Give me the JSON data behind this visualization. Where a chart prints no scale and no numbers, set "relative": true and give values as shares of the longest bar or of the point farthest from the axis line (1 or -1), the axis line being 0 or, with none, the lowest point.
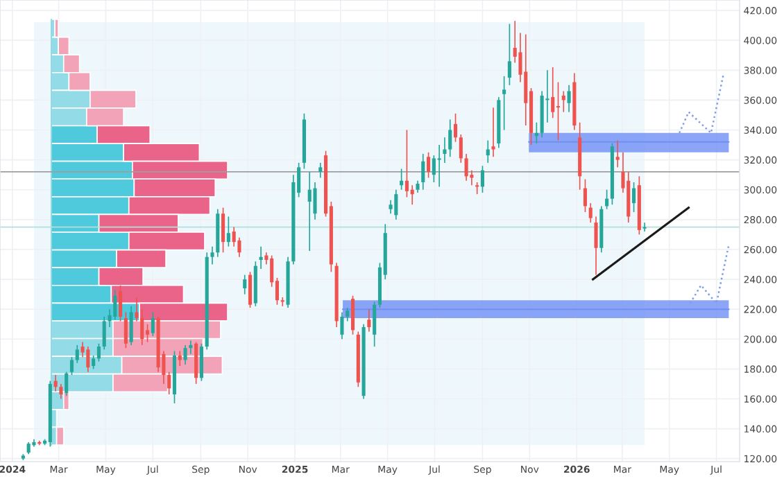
{
  "chart_data": [
    {
      "type": "candlestick",
      "x": [
        "2024-01-15",
        "2024-01-22",
        "2024-01-29",
        "2024-02-05",
        "2024-02-12",
        "2024-02-19",
        "2024-02-26",
        "2024-03-04",
        "2024-03-11",
        "2024-03-18",
        "2024-03-25",
        "2024-04-01",
        "2024-04-08",
        "2024-04-15",
        "2024-04-22",
        "2024-04-29",
        "2024-05-06",
        "2024-05-13",
        "2024-05-20",
        "2024-05-27",
        "2024-06-03",
        "2024-06-10",
        "2024-06-17",
        "2024-06-24",
        "2024-07-01",
        "2024-07-08",
        "2024-07-15",
        "2024-07-22",
        "2024-07-29",
        "2024-08-05",
        "2024-08-12",
        "2024-08-19",
        "2024-08-26",
        "2024-09-02",
        "2024-09-09",
        "2024-09-16",
        "2024-09-23",
        "2024-09-30",
        "2024-10-07",
        "2024-10-14",
        "2024-10-21",
        "2024-10-28",
        "2024-11-04",
        "2024-11-11",
        "2024-11-18",
        "2024-11-25",
        "2024-12-02",
        "2024-12-09",
        "2024-12-16",
        "2024-12-23",
        "2024-12-30",
        "2025-01-06",
        "2025-01-13",
        "2025-01-20",
        "2025-01-27",
        "2025-02-03",
        "2025-02-10",
        "2025-02-17",
        "2025-02-24",
        "2025-03-03",
        "2025-03-10",
        "2025-03-17",
        "2025-03-24",
        "2025-03-31",
        "2025-04-07",
        "2025-04-14",
        "2025-04-21",
        "2025-04-28",
        "2025-05-05",
        "2025-05-12",
        "2025-05-19",
        "2025-05-26",
        "2025-06-02",
        "2025-06-09",
        "2025-06-16",
        "2025-06-23",
        "2025-06-30",
        "2025-07-07",
        "2025-07-14",
        "2025-07-21",
        "2025-07-28",
        "2025-08-04",
        "2025-08-11",
        "2025-08-18",
        "2025-08-25",
        "2025-09-01",
        "2025-09-08",
        "2025-09-15",
        "2025-09-22",
        "2025-09-29",
        "2025-10-06",
        "2025-10-13",
        "2025-10-20",
        "2025-10-27",
        "2025-11-03",
        "2025-11-10",
        "2025-11-17",
        "2025-11-24",
        "2025-12-01",
        "2025-12-08",
        "2025-12-15",
        "2025-12-22",
        "2025-12-29",
        "2026-01-05",
        "2026-01-12",
        "2026-01-19",
        "2026-01-26",
        "2026-02-02",
        "2026-02-09",
        "2026-02-16",
        "2026-02-23",
        "2026-03-02",
        "2026-03-09",
        "2026-03-16",
        "2026-03-23",
        "2026-03-30"
      ],
      "ohlc": [
        [
          120,
          123,
          119,
          122
        ],
        [
          124,
          131,
          123,
          130
        ],
        [
          129,
          133,
          128,
          131
        ],
        [
          131,
          132,
          129,
          130
        ],
        [
          130,
          133,
          129,
          132
        ],
        [
          131,
          172,
          128,
          170
        ],
        [
          172,
          176,
          165,
          168
        ],
        [
          168,
          170,
          160,
          163
        ],
        [
          164,
          178,
          162,
          177
        ],
        [
          178,
          188,
          176,
          186
        ],
        [
          186,
          196,
          184,
          193
        ],
        [
          195,
          198,
          188,
          191
        ],
        [
          193,
          195,
          178,
          181
        ],
        [
          182,
          189,
          180,
          187
        ],
        [
          187,
          197,
          185,
          195
        ],
        [
          195,
          215,
          193,
          212
        ],
        [
          212,
          220,
          208,
          216
        ],
        [
          215,
          233,
          213,
          229
        ],
        [
          232,
          236,
          212,
          215
        ],
        [
          214,
          218,
          194,
          197
        ],
        [
          198,
          222,
          196,
          218
        ],
        [
          218,
          228,
          212,
          214
        ],
        [
          214,
          220,
          196,
          200
        ],
        [
          206,
          210,
          198,
          203
        ],
        [
          204,
          218,
          202,
          214
        ],
        [
          214,
          215,
          178,
          181
        ],
        [
          190,
          192,
          170,
          176
        ],
        [
          176,
          178,
          163,
          167
        ],
        [
          163,
          192,
          157,
          189
        ],
        [
          189,
          192,
          182,
          186
        ],
        [
          186,
          196,
          183,
          194
        ],
        [
          194,
          199,
          190,
          196
        ],
        [
          197,
          198,
          170,
          174
        ],
        [
          174,
          197,
          172,
          195
        ],
        [
          195,
          258,
          193,
          255
        ],
        [
          255,
          262,
          250,
          258
        ],
        [
          258,
          287,
          255,
          284
        ],
        [
          284,
          288,
          258,
          265
        ],
        [
          265,
          282,
          262,
          271
        ],
        [
          272,
          275,
          262,
          265
        ],
        [
          266,
          268,
          255,
          258
        ],
        [
          234,
          243,
          230,
          240
        ],
        [
          243,
          245,
          221,
          223
        ],
        [
          224,
          252,
          222,
          249
        ],
        [
          253,
          262,
          247,
          255
        ],
        [
          256,
          258,
          250,
          253
        ],
        [
          254,
          256,
          235,
          238
        ],
        [
          239,
          241,
          223,
          226
        ],
        [
          226,
          228,
          222,
          225
        ],
        [
          223,
          255,
          221,
          252
        ],
        [
          252,
          310,
          250,
          305
        ],
        [
          298,
          318,
          295,
          315
        ],
        [
          318,
          351,
          314,
          347
        ],
        [
          292,
          312,
          259,
          300
        ],
        [
          284,
          305,
          280,
          301
        ],
        [
          312,
          318,
          308,
          315
        ],
        [
          323,
          326,
          282,
          284
        ],
        [
          289,
          292,
          245,
          250
        ],
        [
          249,
          251,
          208,
          212
        ],
        [
          203,
          218,
          200,
          215
        ],
        [
          215,
          221,
          212,
          219
        ],
        [
          227,
          229,
          203,
          206
        ],
        [
          203,
          205,
          168,
          171
        ],
        [
          162,
          210,
          160,
          208
        ],
        [
          213,
          220,
          205,
          208
        ],
        [
          203,
          225,
          195,
          223
        ],
        [
          223,
          251,
          221,
          248
        ],
        [
          243,
          277,
          240,
          271
        ],
        [
          287,
          293,
          284,
          290
        ],
        [
          283,
          300,
          280,
          297
        ],
        [
          303,
          314,
          300,
          306
        ],
        [
          306,
          340,
          295,
          299
        ],
        [
          300,
          303,
          290,
          297
        ],
        [
          300,
          306,
          298,
          304
        ],
        [
          305,
          324,
          300,
          319
        ],
        [
          322,
          325,
          308,
          312
        ],
        [
          310,
          323,
          305,
          321
        ],
        [
          320,
          330,
          302,
          321
        ],
        [
          324,
          335,
          318,
          327
        ],
        [
          327,
          347,
          322,
          340
        ],
        [
          344,
          351,
          332,
          335
        ],
        [
          335,
          337,
          318,
          321
        ],
        [
          321,
          324,
          306,
          309
        ],
        [
          310,
          313,
          303,
          308
        ],
        [
          303,
          305,
          297,
          302
        ],
        [
          302,
          316,
          298,
          313
        ],
        [
          323,
          333,
          318,
          327
        ],
        [
          329,
          355,
          322,
          327
        ],
        [
          331,
          362,
          328,
          360
        ],
        [
          364,
          376,
          340,
          367
        ],
        [
          375,
          411,
          370,
          386
        ],
        [
          395,
          413,
          385,
          389
        ],
        [
          392,
          405,
          372,
          377
        ],
        [
          379,
          404,
          343,
          358
        ],
        [
          366,
          368,
          330,
          338
        ],
        [
          336,
          345,
          331,
          338
        ],
        [
          338,
          366,
          335,
          363
        ],
        [
          360,
          380,
          345,
          361
        ],
        [
          362,
          382,
          348,
          352
        ],
        [
          356,
          372,
          333,
          355
        ],
        [
          363,
          366,
          352,
          360
        ],
        [
          358,
          370,
          352,
          366
        ],
        [
          372,
          378,
          340,
          343
        ],
        [
          335,
          345,
          300,
          309
        ],
        [
          301,
          307,
          285,
          289
        ],
        [
          288,
          291,
          278,
          281
        ],
        [
          278,
          282,
          243,
          261
        ],
        [
          261,
          289,
          258,
          287
        ],
        [
          289,
          300,
          287,
          294
        ],
        [
          294,
          331,
          290,
          329
        ],
        [
          322,
          333,
          315,
          320
        ],
        [
          312,
          325,
          298,
          301
        ],
        [
          306,
          312,
          278,
          282
        ],
        [
          291,
          305,
          285,
          301
        ],
        [
          303,
          309,
          270,
          273
        ],
        [
          274,
          278,
          272,
          275
        ]
      ],
      "colors": [
        "#26a69a",
        "#26a69a",
        "#26a69a",
        "#ef5350",
        "#26a69a",
        "#26a69a",
        "#ef5350",
        "#ef5350",
        "#26a69a",
        "#26a69a",
        "#26a69a",
        "#ef5350",
        "#ef5350",
        "#26a69a",
        "#26a69a",
        "#26a69a",
        "#26a69a",
        "#26a69a",
        "#ef5350",
        "#ef5350",
        "#26a69a",
        "#ef5350",
        "#ef5350",
        "#ef5350",
        "#26a69a",
        "#ef5350",
        "#ef5350",
        "#ef5350",
        "#26a69a",
        "#ef5350",
        "#26a69a",
        "#26a69a",
        "#ef5350",
        "#26a69a",
        "#26a69a",
        "#26a69a",
        "#26a69a",
        "#ef5350",
        "#26a69a",
        "#ef5350",
        "#ef5350",
        "#26a69a",
        "#ef5350",
        "#26a69a",
        "#26a69a",
        "#ef5350",
        "#ef5350",
        "#ef5350",
        "#ef5350",
        "#26a69a",
        "#26a69a",
        "#26a69a",
        "#26a69a",
        "#26a69a",
        "#26a69a",
        "#26a69a",
        "#ef5350",
        "#ef5350",
        "#ef5350",
        "#26a69a",
        "#26a69a",
        "#ef5350",
        "#ef5350",
        "#26a69a",
        "#ef5350",
        "#26a69a",
        "#26a69a",
        "#26a69a",
        "#26a69a",
        "#26a69a",
        "#26a69a",
        "#ef5350",
        "#ef5350",
        "#26a69a",
        "#26a69a",
        "#ef5350",
        "#26a69a",
        "#26a69a",
        "#26a69a",
        "#26a69a",
        "#ef5350",
        "#ef5350",
        "#ef5350",
        "#ef5350",
        "#ef5350",
        "#26a69a",
        "#26a69a",
        "#ef5350",
        "#26a69a",
        "#26a69a",
        "#26a69a",
        "#ef5350",
        "#ef5350",
        "#ef5350",
        "#ef5350",
        "#26a69a",
        "#26a69a",
        "#26a69a",
        "#ef5350",
        "#ef5350",
        "#ef5350",
        "#26a69a",
        "#ef5350",
        "#ef5350",
        "#ef5350",
        "#ef5350",
        "#ef5350",
        "#26a69a",
        "#26a69a",
        "#26a69a",
        "#ef5350",
        "#ef5350",
        "#ef5350",
        "#26a69a",
        "#ef5350",
        "#26a69a"
      ],
      "series": [
        {
          "type": "line",
          "color": "#6f8ff5",
          "x": [
            "2025-10-31",
            "2026-07-17"
          ],
          "lower": [
            325,
            325
          ],
          "upper": [
            338,
            338
          ],
          "values": [
            332,
            332
          ]
        },
        {
          "type": "line",
          "color": "#6f8ff5",
          "x": [
            "2025-03-04",
            "2026-07-17"
          ],
          "lower": [
            214,
            214
          ],
          "upper": [
            226,
            226
          ],
          "values": [
            220,
            220
          ]
        },
        {
          "type": "line",
          "color": "#1a1a1a",
          "line_style": "solid",
          "x": [
            "2026-01-22",
            "2026-05-26"
          ],
          "values": [
            240,
            288
          ]
        },
        {
          "type": "line",
          "color": "#7e9ee6",
          "line_style": "dotted",
          "x": [
            "2026-05-14",
            "2026-05-26",
            "2026-06-24",
            "2026-07-10"
          ],
          "values": [
            338,
            352,
            338,
            377
          ]
        },
        {
          "type": "line",
          "color": "#7e9ee6",
          "line_style": "dotted",
          "x": [
            "2026-05-28",
            "2026-06-11",
            "2026-07-01",
            "2026-07-17"
          ],
          "values": [
            224,
            236,
            224,
            263
          ]
        }
      ],
      "ref_lines": [
        {
          "axis": "y",
          "value": 312,
          "color": "#9e9e9e"
        },
        {
          "axis": "y",
          "value": 275,
          "color": "#b2dfdb"
        }
      ],
      "bands": [
        {
          "axis": "x",
          "from": "2024-01-29",
          "to": "2026-03-30",
          "color": "#eef8fc"
        }
      ],
      "xlim": [
        "2023-12-16",
        "2026-07-31"
      ],
      "xticks": [
        {
          "value": "2024-01-01",
          "label": "2024"
        },
        {
          "value": "2024-03-01",
          "label": "Mar"
        },
        {
          "value": "2024-05-01",
          "label": "May"
        },
        {
          "value": "2024-07-01",
          "label": "Jul"
        },
        {
          "value": "2024-09-01",
          "label": "Sep"
        },
        {
          "value": "2024-11-01",
          "label": "Nov"
        },
        {
          "value": "2025-01-01",
          "label": "2025"
        },
        {
          "value": "2025-03-01",
          "label": "Mar"
        },
        {
          "value": "2025-05-01",
          "label": "May"
        },
        {
          "value": "2025-07-01",
          "label": "Jul"
        },
        {
          "value": "2025-09-01",
          "label": "Sep"
        },
        {
          "value": "2025-11-01",
          "label": "Nov"
        },
        {
          "value": "2026-01-01",
          "label": "2026"
        },
        {
          "value": "2026-03-01",
          "label": "Mar"
        },
        {
          "value": "2026-05-01",
          "label": "May"
        },
        {
          "value": "2026-07-01",
          "label": "Jul"
        }
      ],
      "ylim": [
        118,
        427
      ],
      "yticks": [
        {
          "value": 120,
          "label": "120.00"
        },
        {
          "value": 140,
          "label": "140.00"
        },
        {
          "value": 160,
          "label": "160.00"
        },
        {
          "value": 180,
          "label": "180.00"
        },
        {
          "value": 200,
          "label": "200.00"
        },
        {
          "value": 220,
          "label": "220.00"
        },
        {
          "value": 240,
          "label": "240.00"
        },
        {
          "value": 260,
          "label": "260.00"
        },
        {
          "value": 280,
          "label": "280.00"
        },
        {
          "value": 300,
          "label": "300.00"
        },
        {
          "value": 320,
          "label": "320.00"
        },
        {
          "value": 340,
          "label": "340.00"
        },
        {
          "value": 360,
          "label": "360.00"
        },
        {
          "value": 380,
          "label": "380.00"
        },
        {
          "value": 400,
          "label": "400.00"
        },
        {
          "value": 420,
          "label": "420.00"
        }
      ],
      "grid": true,
      "legend": false
    },
    {
      "type": "bar",
      "orientation": "horizontal",
      "stacked": true,
      "relative": true,
      "categories": [
        null,
        null,
        null,
        null,
        null,
        null,
        null,
        null,
        null,
        null,
        null,
        null,
        null,
        null,
        null,
        null,
        null,
        null,
        null,
        null,
        null,
        null,
        null,
        null
      ],
      "series": [
        {
          "values": [
            0.02,
            0.04,
            0.07,
            0.1,
            0.22,
            0.2,
            0.26,
            0.41,
            0.46,
            0.47,
            0.44,
            0.27,
            0.44,
            0.37,
            0.27,
            0.34,
            0.5,
            0.35,
            0.35,
            0.4,
            0.35,
            0.07,
            0.03,
            0.03
          ],
          "colors": [
            "#92dbe7",
            "#92dbe7",
            "#92dbe7",
            "#92dbe7",
            "#92dbe7",
            "#92dbe7",
            "#4fc9dc",
            "#4fc9dc",
            "#4fc9dc",
            "#4fc9dc",
            "#4fc9dc",
            "#4fc9dc",
            "#4fc9dc",
            "#4fc9dc",
            "#4fc9dc",
            "#4fc9dc",
            "#4fc9dc",
            "#92dbe7",
            "#92dbe7",
            "#92dbe7",
            "#92dbe7",
            "#92dbe7",
            "#92dbe7",
            "#92dbe7"
          ]
        },
        {
          "values": [
            0.02,
            0.06,
            0.09,
            0.12,
            0.26,
            0.21,
            0.3,
            0.43,
            0.54,
            0.46,
            0.46,
            0.45,
            0.43,
            0.28,
            0.25,
            0.41,
            0.5,
            0.61,
            0.51,
            0.57,
            0.31,
            0.03,
            0,
            0.04
          ],
          "colors": [
            "#f2a3b8",
            "#f2a3b8",
            "#f2a3b8",
            "#f2a3b8",
            "#f2a3b8",
            "#f2a3b8",
            "#ea648a",
            "#ea648a",
            "#ea648a",
            "#ea648a",
            "#ea648a",
            "#ea648a",
            "#ea648a",
            "#ea648a",
            "#ea648a",
            "#ea648a",
            "#ea648a",
            "#f2a3b8",
            "#f2a3b8",
            "#f2a3b8",
            "#f2a3b8",
            "#f2a3b8",
            "#f2a3b8",
            "#f2a3b8"
          ]
        }
      ]
    }
  ]
}
